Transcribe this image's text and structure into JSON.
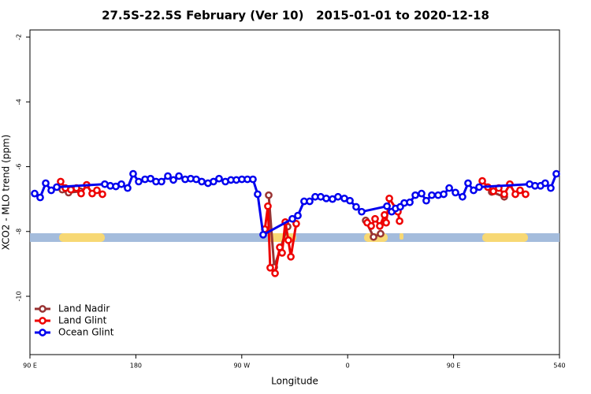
{
  "chart_data": {
    "type": "line",
    "title": "27.5S-22.5S February (Ver 10)   2015-01-01 to 2020-12-18",
    "x_label": "Longitude",
    "y_label": "XCO2 - MLO trend (ppm)",
    "xlim": [
      90,
      540
    ],
    "ylim": [
      -11.8,
      -1.78
    ],
    "xticks": [
      {
        "value": 90,
        "label": "90 E"
      },
      180,
      {
        "value": 270,
        "label": "90 W"
      },
      {
        "value": 360,
        "label": "0"
      },
      {
        "value": 450,
        "label": "90 E"
      },
      540
    ],
    "yticks": [
      -2,
      -4,
      -6,
      -8,
      -10
    ],
    "legend": "bottomleft",
    "series": [
      {
        "name": "Land Nadir",
        "color": "#993333",
        "x": [
          117.5,
          122.8,
          132.9,
          null,
          292.9,
          297.6,
          309.0,
          null,
          375.3,
          382.0,
          388.0,
          null,
          482.4,
          493.1
        ],
        "values": [
          -6.71,
          -6.8,
          -6.76,
          null,
          -6.88,
          -9.1,
          -7.85,
          null,
          -7.66,
          -8.17,
          -8.07,
          null,
          -6.78,
          -6.93
        ]
      },
      {
        "name": "Land Glint",
        "color": "#ee0000",
        "x": [
          116.1,
          120.1,
          124.8,
          129.5,
          133.5,
          138.2,
          142.9,
          146.9,
          151.6,
          null,
          289.6,
          292.2,
          294.2,
          298.3,
          302.3,
          304.3,
          307.0,
          309.6,
          311.7,
          316.3,
          null,
          376.6,
          380.0,
          383.3,
          387.3,
          391.3,
          392.7,
          395.4,
          402.7,
          404.1,
          null,
          474.4,
          479.1,
          483.8,
          488.4,
          493.1,
          497.8,
          502.5,
          506.5,
          511.2
        ],
        "values": [
          -6.46,
          -6.66,
          -6.71,
          -6.66,
          -6.83,
          -6.56,
          -6.83,
          -6.73,
          -6.85,
          null,
          -7.93,
          -7.22,
          -9.12,
          -9.29,
          -8.49,
          -8.66,
          -7.71,
          -8.27,
          -8.78,
          -7.76,
          null,
          -7.73,
          -7.83,
          -7.61,
          -7.83,
          -7.49,
          -7.73,
          -6.98,
          -7.39,
          -7.68,
          null,
          -6.44,
          -6.63,
          -6.76,
          -6.66,
          -6.85,
          -6.54,
          -6.85,
          -6.73,
          -6.85
        ]
      },
      {
        "name": "Ocean Glint",
        "color": "#0000ee",
        "x": [
          94.0,
          98.7,
          103.4,
          108.1,
          112.8,
          153.6,
          158.3,
          163.0,
          167.7,
          173.0,
          177.7,
          182.4,
          187.8,
          192.5,
          197.1,
          201.8,
          207.2,
          211.9,
          216.6,
          221.9,
          226.6,
          231.3,
          236.0,
          241.3,
          246.0,
          250.7,
          256.1,
          260.8,
          265.4,
          270.1,
          274.8,
          279.5,
          283.5,
          288.2,
          313.0,
          317.7,
          323.0,
          327.7,
          332.4,
          337.1,
          341.8,
          347.1,
          351.8,
          357.2,
          361.9,
          367.2,
          371.9,
          393.4,
          397.4,
          400.7,
          404.7,
          408.1,
          412.8,
          417.5,
          422.8,
          426.8,
          431.5,
          436.9,
          441.6,
          446.3,
          451.6,
          457.6,
          462.3,
          467.0,
          471.7,
          514.6,
          519.2,
          523.9,
          527.9,
          532.6,
          537.3
        ],
        "values": [
          -6.83,
          -6.95,
          -6.51,
          -6.73,
          -6.63,
          -6.54,
          -6.59,
          -6.61,
          -6.54,
          -6.66,
          -6.22,
          -6.46,
          -6.39,
          -6.37,
          -6.46,
          -6.46,
          -6.29,
          -6.41,
          -6.29,
          -6.39,
          -6.37,
          -6.39,
          -6.46,
          -6.51,
          -6.46,
          -6.37,
          -6.46,
          -6.41,
          -6.41,
          -6.39,
          -6.39,
          -6.39,
          -6.85,
          -8.1,
          -7.61,
          -7.51,
          -7.07,
          -7.07,
          -6.93,
          -6.93,
          -6.98,
          -7.0,
          -6.93,
          -6.98,
          -7.05,
          -7.24,
          -7.39,
          -7.22,
          -7.39,
          -7.29,
          -7.24,
          -7.12,
          -7.1,
          -6.88,
          -6.83,
          -7.05,
          -6.88,
          -6.88,
          -6.85,
          -6.66,
          -6.8,
          -6.93,
          -6.51,
          -6.73,
          -6.63,
          -6.54,
          -6.59,
          -6.59,
          -6.51,
          -6.66,
          -6.22
        ]
      }
    ]
  }
}
